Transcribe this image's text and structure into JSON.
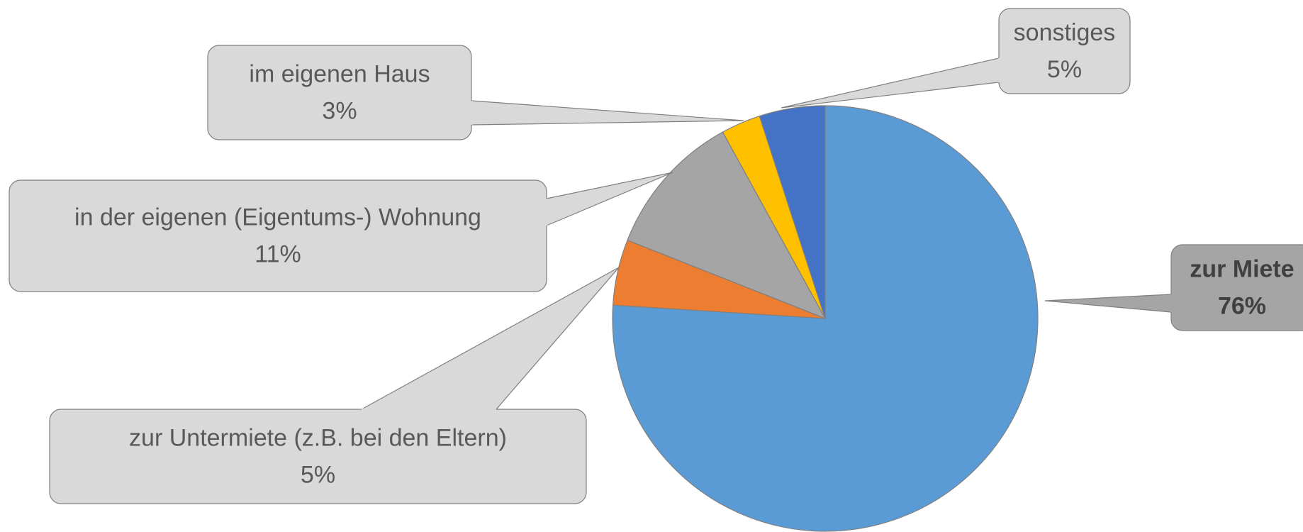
{
  "chart_data": {
    "type": "pie",
    "categories": [
      "zur Miete",
      "zur Untermiete (z.B. bei den Eltern)",
      "in der eigenen (Eigentums-) Wohnung",
      "im eigenen Haus",
      "sonstiges"
    ],
    "values": [
      76,
      5,
      11,
      3,
      5
    ],
    "value_labels": [
      "76%",
      "5%",
      "11%",
      "3%",
      "5%"
    ],
    "colors": [
      "#5b9bd5",
      "#ed7d31",
      "#a5a5a5",
      "#ffc000",
      "#4472c4"
    ]
  }
}
